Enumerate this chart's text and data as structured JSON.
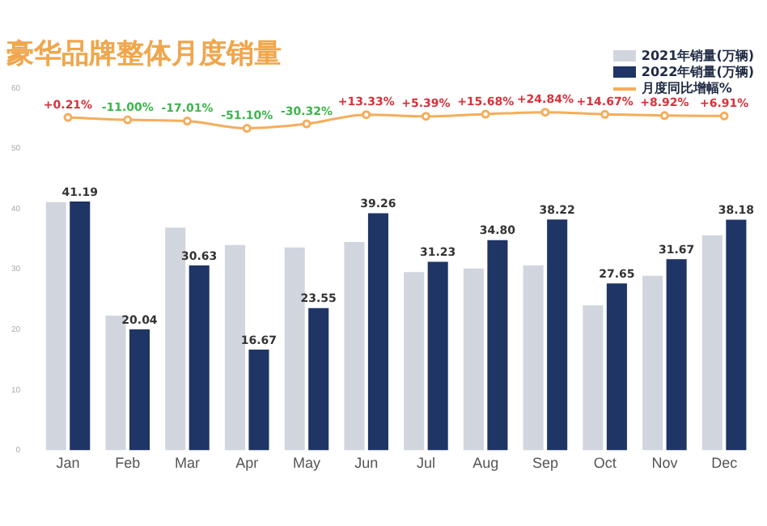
{
  "chart_data": {
    "type": "bar",
    "title": "豪华品牌整体月度销量",
    "categories": [
      "Jan",
      "Feb",
      "Mar",
      "Apr",
      "May",
      "Jun",
      "Jul",
      "Aug",
      "Sep",
      "Oct",
      "Nov",
      "Dec"
    ],
    "series": [
      {
        "name": "2021年销量(万辆)",
        "color": "#d1d5de",
        "values": [
          41.1,
          22.3,
          36.9,
          34.0,
          33.6,
          34.5,
          29.5,
          30.1,
          30.6,
          24.0,
          28.9,
          35.6
        ]
      },
      {
        "name": "2022年销量(万辆)",
        "color": "#1f3566",
        "values": [
          41.19,
          20.04,
          30.63,
          16.67,
          23.55,
          39.26,
          31.23,
          34.8,
          38.22,
          27.65,
          31.67,
          38.18
        ],
        "value_labels": [
          "41.19",
          "20.04",
          "30.63",
          "16.67",
          "23.55",
          "39.26",
          "31.23",
          "34.80",
          "38.22",
          "27.65",
          "31.67",
          "38.18"
        ]
      },
      {
        "name": "月度同比增幅%",
        "type": "line",
        "axis": "y2",
        "color": "#f5ad5b",
        "values": [
          0.21,
          -11.0,
          -17.01,
          -51.1,
          -30.32,
          13.33,
          5.39,
          15.68,
          24.84,
          14.67,
          8.92,
          6.91
        ],
        "value_labels": [
          "+0.21%",
          "-11.00%",
          "-17.01%",
          "-51.10%",
          "-30.32%",
          "+13.33%",
          "+5.39%",
          "+15.68%",
          "+24.84%",
          "+14.67%",
          "+8.92%",
          "+6.91%"
        ]
      }
    ],
    "ylim": [
      0,
      60
    ],
    "yticks": [
      0,
      10,
      20,
      30,
      40,
      50,
      60
    ],
    "grid": false,
    "legend": "top right",
    "marker": "circle",
    "line_style": "solid"
  }
}
